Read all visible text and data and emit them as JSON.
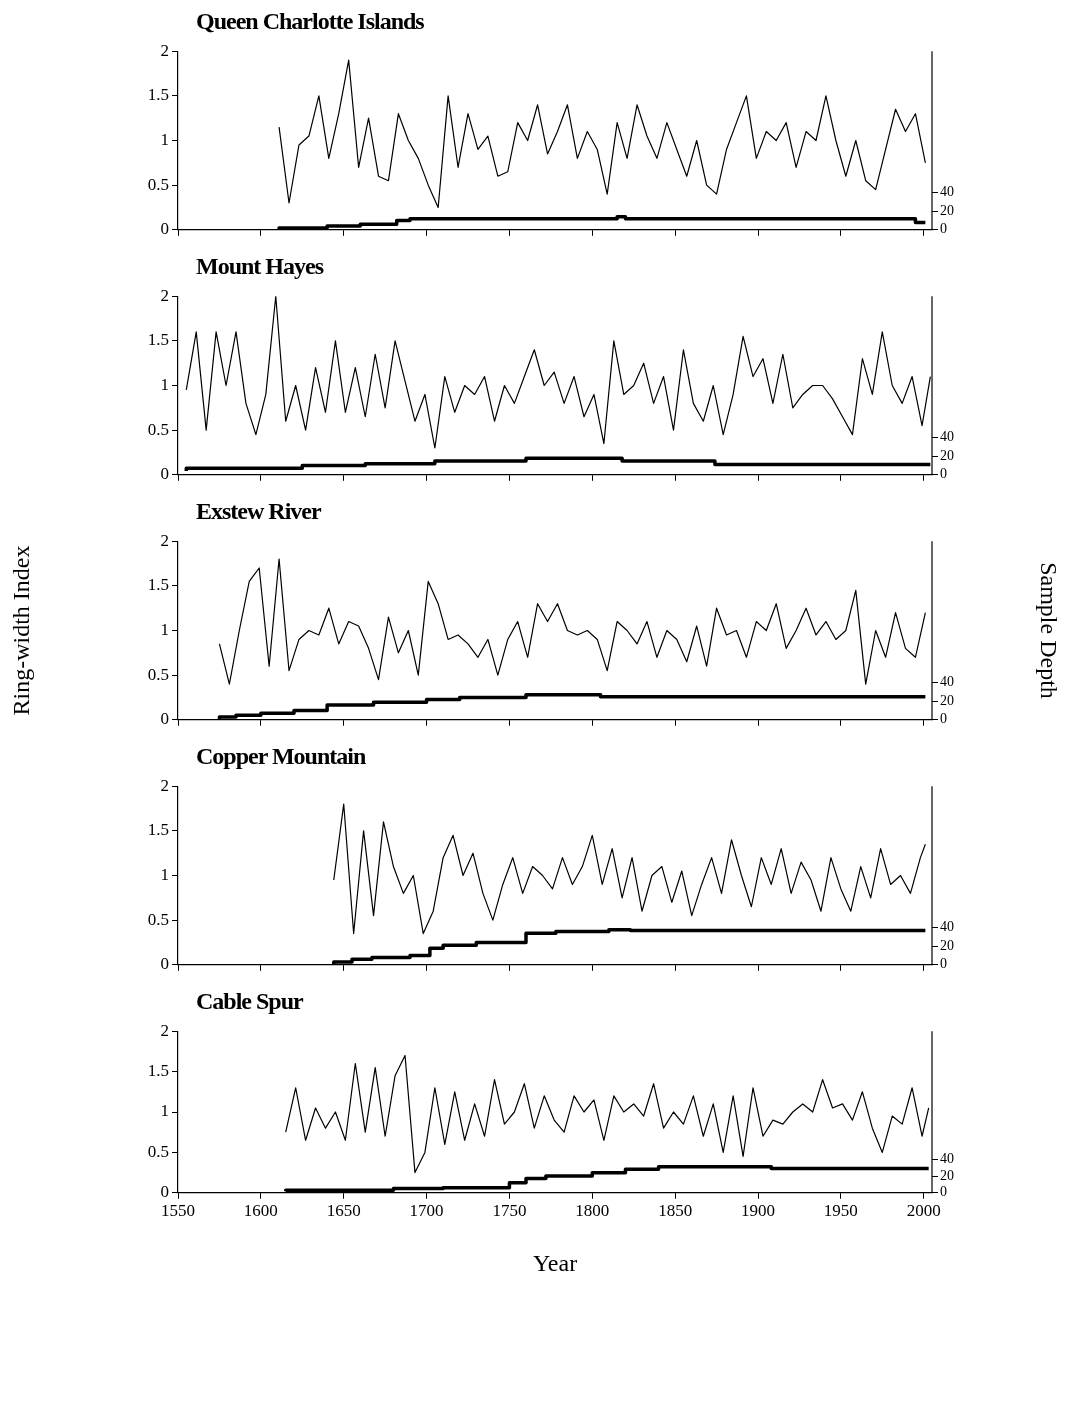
{
  "chart_data": [
    {
      "type": "line",
      "title": "Queen Charlotte Islands",
      "xlim": [
        1550,
        2005
      ],
      "xticks": [
        1550,
        1600,
        1650,
        1700,
        1750,
        1800,
        1850,
        1900,
        1950,
        2000
      ],
      "ylim": [
        0,
        2
      ],
      "yticks": [
        0,
        0.5,
        1,
        1.5,
        2
      ],
      "y2lim": [
        0,
        193
      ],
      "y2ticks": [
        0,
        20,
        40
      ],
      "tick_labels": "y",
      "grid": false,
      "legend": false,
      "marker": "none",
      "series": [
        {
          "color": "#000000",
          "x": [
            1611,
            1617,
            1623,
            1629,
            1635,
            1641,
            1647,
            1653,
            1659,
            1665,
            1671,
            1677,
            1683,
            1689,
            1695,
            1701,
            1707,
            1713,
            1719,
            1725,
            1731,
            1737,
            1743,
            1749,
            1755,
            1761,
            1767,
            1773,
            1779,
            1785,
            1791,
            1797,
            1803,
            1809,
            1815,
            1821,
            1827,
            1833,
            1839,
            1845,
            1851,
            1857,
            1863,
            1869,
            1875,
            1881,
            1887,
            1893,
            1899,
            1905,
            1911,
            1917,
            1923,
            1929,
            1935,
            1941,
            1947,
            1953,
            1959,
            1965,
            1971,
            1977,
            1983,
            1989,
            1995,
            2001
          ],
          "values": [
            1.15,
            0.3,
            0.95,
            1.05,
            1.5,
            0.8,
            1.3,
            1.9,
            0.7,
            1.25,
            0.6,
            0.55,
            1.3,
            1.0,
            0.8,
            0.5,
            0.25,
            1.5,
            0.7,
            1.3,
            0.9,
            1.05,
            0.6,
            0.65,
            1.2,
            1.0,
            1.4,
            0.85,
            1.1,
            1.4,
            0.8,
            1.1,
            0.9,
            0.4,
            1.2,
            0.8,
            1.4,
            1.05,
            0.8,
            1.2,
            0.9,
            0.6,
            1.0,
            0.5,
            0.4,
            0.9,
            1.2,
            1.5,
            0.8,
            1.1,
            1.0,
            1.2,
            0.7,
            1.1,
            1.0,
            1.5,
            1.0,
            0.6,
            1.0,
            0.55,
            0.45,
            0.9,
            1.35,
            1.1,
            1.3,
            0.75
          ]
        },
        {
          "type": "step",
          "axis": "y2",
          "color": "#000000",
          "x": [
            1611,
            1640,
            1660,
            1682,
            1690,
            1697,
            1815,
            1820,
            1995,
            2001
          ],
          "values": [
            1,
            2,
            4,
            6,
            10,
            12,
            12,
            14,
            12,
            8
          ]
        }
      ]
    },
    {
      "type": "line",
      "title": "Mount Hayes",
      "xlim": [
        1550,
        2005
      ],
      "xticks": [
        1550,
        1600,
        1650,
        1700,
        1750,
        1800,
        1850,
        1900,
        1950,
        2000
      ],
      "ylim": [
        0,
        2
      ],
      "yticks": [
        0,
        0.5,
        1,
        1.5,
        2
      ],
      "y2lim": [
        0,
        193
      ],
      "y2ticks": [
        0,
        20,
        40
      ],
      "tick_labels": "y",
      "grid": false,
      "legend": false,
      "marker": "none",
      "series": [
        {
          "color": "#000000",
          "x": [
            1555,
            1561,
            1567,
            1573,
            1579,
            1585,
            1591,
            1597,
            1603,
            1609,
            1615,
            1621,
            1627,
            1633,
            1639,
            1645,
            1651,
            1657,
            1663,
            1669,
            1675,
            1681,
            1687,
            1693,
            1699,
            1705,
            1711,
            1717,
            1723,
            1729,
            1735,
            1741,
            1747,
            1753,
            1759,
            1765,
            1771,
            1777,
            1783,
            1789,
            1795,
            1801,
            1807,
            1813,
            1819,
            1825,
            1831,
            1837,
            1843,
            1849,
            1855,
            1861,
            1867,
            1873,
            1879,
            1885,
            1891,
            1897,
            1903,
            1909,
            1915,
            1921,
            1927,
            1933,
            1939,
            1945,
            1951,
            1957,
            1963,
            1969,
            1975,
            1981,
            1987,
            1993,
            1999,
            2004
          ],
          "values": [
            0.95,
            1.6,
            0.5,
            1.6,
            1.0,
            1.6,
            0.8,
            0.45,
            0.9,
            2.0,
            0.6,
            1.0,
            0.5,
            1.2,
            0.7,
            1.5,
            0.7,
            1.2,
            0.65,
            1.35,
            0.75,
            1.5,
            1.05,
            0.6,
            0.9,
            0.3,
            1.1,
            0.7,
            1.0,
            0.9,
            1.1,
            0.6,
            1.0,
            0.8,
            1.1,
            1.4,
            1.0,
            1.15,
            0.8,
            1.1,
            0.65,
            0.9,
            0.35,
            1.5,
            0.9,
            1.0,
            1.25,
            0.8,
            1.1,
            0.5,
            1.4,
            0.8,
            0.6,
            1.0,
            0.45,
            0.9,
            1.55,
            1.1,
            1.3,
            0.8,
            1.35,
            0.75,
            0.9,
            1.0,
            1.0,
            0.85,
            0.65,
            0.45,
            1.3,
            0.9,
            1.6,
            1.0,
            0.8,
            1.1,
            0.55,
            1.1
          ]
        },
        {
          "type": "step",
          "axis": "y2",
          "color": "#000000",
          "x": [
            1555,
            1625,
            1663,
            1705,
            1760,
            1818,
            1874,
            1948,
            2004
          ],
          "values": [
            4,
            7,
            10,
            12,
            15,
            18,
            15,
            11,
            11
          ]
        }
      ]
    },
    {
      "type": "line",
      "title": "Exstew River",
      "ylabel": "Ring-width Index",
      "y2label": "Sample Depth",
      "xlim": [
        1550,
        2005
      ],
      "xticks": [
        1550,
        1600,
        1650,
        1700,
        1750,
        1800,
        1850,
        1900,
        1950,
        2000
      ],
      "ylim": [
        0,
        2
      ],
      "yticks": [
        0,
        0.5,
        1,
        1.5,
        2
      ],
      "y2lim": [
        0,
        193
      ],
      "y2ticks": [
        0,
        20,
        40
      ],
      "tick_labels": "y",
      "grid": false,
      "legend": false,
      "marker": "none",
      "series": [
        {
          "color": "#000000",
          "x": [
            1575,
            1581,
            1587,
            1593,
            1599,
            1605,
            1611,
            1617,
            1623,
            1629,
            1635,
            1641,
            1647,
            1653,
            1659,
            1665,
            1671,
            1677,
            1683,
            1689,
            1695,
            1701,
            1707,
            1713,
            1719,
            1725,
            1731,
            1737,
            1743,
            1749,
            1755,
            1761,
            1767,
            1773,
            1779,
            1785,
            1791,
            1797,
            1803,
            1809,
            1815,
            1821,
            1827,
            1833,
            1839,
            1845,
            1851,
            1857,
            1863,
            1869,
            1875,
            1881,
            1887,
            1893,
            1899,
            1905,
            1911,
            1917,
            1923,
            1929,
            1935,
            1941,
            1947,
            1953,
            1959,
            1965,
            1971,
            1977,
            1983,
            1989,
            1995,
            2001
          ],
          "values": [
            0.85,
            0.4,
            1.0,
            1.55,
            1.7,
            0.6,
            1.8,
            0.55,
            0.9,
            1.0,
            0.95,
            1.25,
            0.85,
            1.1,
            1.05,
            0.8,
            0.45,
            1.15,
            0.75,
            1.0,
            0.5,
            1.55,
            1.3,
            0.9,
            0.95,
            0.85,
            0.7,
            0.9,
            0.5,
            0.9,
            1.1,
            0.7,
            1.3,
            1.1,
            1.3,
            1.0,
            0.95,
            1.0,
            0.9,
            0.55,
            1.1,
            1.0,
            0.85,
            1.1,
            0.7,
            1.0,
            0.9,
            0.65,
            1.05,
            0.6,
            1.25,
            0.95,
            1.0,
            0.7,
            1.1,
            1.0,
            1.3,
            0.8,
            1.0,
            1.25,
            0.95,
            1.1,
            0.9,
            1.0,
            1.45,
            0.4,
            1.0,
            0.7,
            1.2,
            0.8,
            0.7,
            1.2
          ]
        },
        {
          "type": "step",
          "axis": "y2",
          "color": "#000000",
          "x": [
            1575,
            1585,
            1600,
            1620,
            1640,
            1668,
            1700,
            1720,
            1760,
            1805,
            2001
          ],
          "values": [
            1,
            3,
            5,
            7,
            10,
            16,
            19,
            22,
            24,
            27,
            25
          ]
        }
      ]
    },
    {
      "type": "line",
      "title": "Copper Mountain",
      "xlim": [
        1550,
        2005
      ],
      "xticks": [
        1550,
        1600,
        1650,
        1700,
        1750,
        1800,
        1850,
        1900,
        1950,
        2000
      ],
      "ylim": [
        0,
        2
      ],
      "yticks": [
        0,
        0.5,
        1,
        1.5,
        2
      ],
      "y2lim": [
        0,
        193
      ],
      "y2ticks": [
        0,
        20,
        40
      ],
      "tick_labels": "y",
      "grid": false,
      "legend": false,
      "marker": "none",
      "series": [
        {
          "color": "#000000",
          "x": [
            1644,
            1650,
            1656,
            1662,
            1668,
            1674,
            1680,
            1686,
            1692,
            1698,
            1704,
            1710,
            1716,
            1722,
            1728,
            1734,
            1740,
            1746,
            1752,
            1758,
            1764,
            1770,
            1776,
            1782,
            1788,
            1794,
            1800,
            1806,
            1812,
            1818,
            1824,
            1830,
            1836,
            1842,
            1848,
            1854,
            1860,
            1866,
            1872,
            1878,
            1884,
            1890,
            1896,
            1902,
            1908,
            1914,
            1920,
            1926,
            1932,
            1938,
            1944,
            1950,
            1956,
            1962,
            1968,
            1974,
            1980,
            1986,
            1992,
            1998,
            2001
          ],
          "values": [
            0.95,
            1.8,
            0.35,
            1.5,
            0.55,
            1.6,
            1.1,
            0.8,
            1.0,
            0.35,
            0.6,
            1.2,
            1.45,
            1.0,
            1.25,
            0.8,
            0.5,
            0.9,
            1.2,
            0.8,
            1.1,
            1.0,
            0.85,
            1.2,
            0.9,
            1.1,
            1.45,
            0.9,
            1.3,
            0.75,
            1.2,
            0.6,
            1.0,
            1.1,
            0.7,
            1.05,
            0.55,
            0.9,
            1.2,
            0.8,
            1.4,
            1.0,
            0.65,
            1.2,
            0.9,
            1.3,
            0.8,
            1.15,
            0.95,
            0.6,
            1.2,
            0.85,
            0.6,
            1.1,
            0.75,
            1.3,
            0.9,
            1.0,
            0.8,
            1.2,
            1.35
          ]
        },
        {
          "type": "step",
          "axis": "y2",
          "color": "#000000",
          "x": [
            1644,
            1655,
            1667,
            1690,
            1702,
            1710,
            1730,
            1760,
            1778,
            1810,
            1823,
            2001
          ],
          "values": [
            1,
            3,
            6,
            8,
            10,
            18,
            21,
            24,
            34,
            36,
            38,
            37
          ]
        }
      ]
    },
    {
      "type": "line",
      "title": "Cable Spur",
      "xlabel": "Year",
      "xlim": [
        1550,
        2005
      ],
      "xticks": [
        1550,
        1600,
        1650,
        1700,
        1750,
        1800,
        1850,
        1900,
        1950,
        2000
      ],
      "ylim": [
        0,
        2
      ],
      "yticks": [
        0,
        0.5,
        1,
        1.5,
        2
      ],
      "y2lim": [
        0,
        193
      ],
      "y2ticks": [
        0,
        20,
        40
      ],
      "grid": false,
      "legend": false,
      "marker": "none",
      "series": [
        {
          "color": "#000000",
          "x": [
            1615,
            1621,
            1627,
            1633,
            1639,
            1645,
            1651,
            1657,
            1663,
            1669,
            1675,
            1681,
            1687,
            1693,
            1699,
            1705,
            1711,
            1717,
            1723,
            1729,
            1735,
            1741,
            1747,
            1753,
            1759,
            1765,
            1771,
            1777,
            1783,
            1789,
            1795,
            1801,
            1807,
            1813,
            1819,
            1825,
            1831,
            1837,
            1843,
            1849,
            1855,
            1861,
            1867,
            1873,
            1879,
            1885,
            1891,
            1897,
            1903,
            1909,
            1915,
            1921,
            1927,
            1933,
            1939,
            1945,
            1951,
            1957,
            1963,
            1969,
            1975,
            1981,
            1987,
            1993,
            1999,
            2003
          ],
          "values": [
            0.75,
            1.3,
            0.65,
            1.05,
            0.8,
            1.0,
            0.65,
            1.6,
            0.75,
            1.55,
            0.7,
            1.45,
            1.7,
            0.25,
            0.5,
            1.3,
            0.6,
            1.25,
            0.65,
            1.1,
            0.7,
            1.4,
            0.85,
            1.0,
            1.35,
            0.8,
            1.2,
            0.9,
            0.75,
            1.2,
            1.0,
            1.15,
            0.65,
            1.2,
            1.0,
            1.1,
            0.95,
            1.35,
            0.8,
            1.0,
            0.85,
            1.2,
            0.7,
            1.1,
            0.5,
            1.2,
            0.45,
            1.3,
            0.7,
            0.9,
            0.85,
            1.0,
            1.1,
            1.0,
            1.4,
            1.05,
            1.1,
            0.9,
            1.25,
            0.8,
            0.5,
            0.95,
            0.85,
            1.3,
            0.7,
            1.05
          ]
        },
        {
          "type": "step",
          "axis": "y2",
          "color": "#000000",
          "x": [
            1615,
            1680,
            1710,
            1750,
            1760,
            1772,
            1800,
            1820,
            1840,
            1908,
            2003
          ],
          "values": [
            2,
            3,
            5,
            6,
            12,
            17,
            20,
            24,
            28,
            31,
            29
          ]
        }
      ]
    }
  ]
}
